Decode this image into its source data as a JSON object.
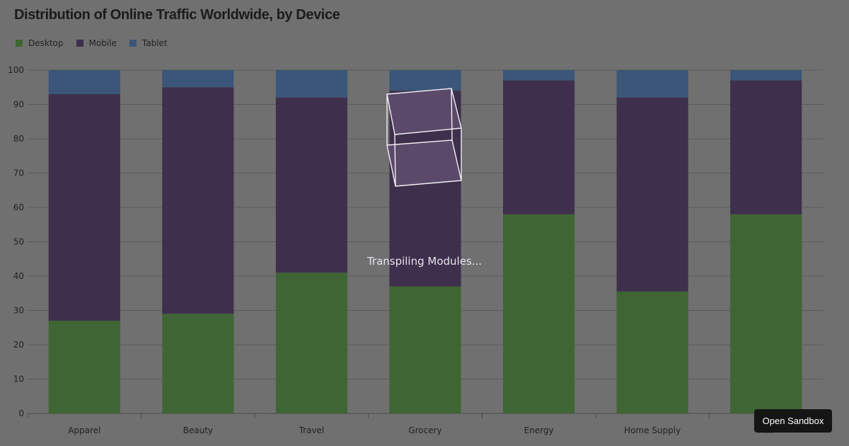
{
  "chart_data": {
    "type": "bar",
    "stacked": true,
    "title": "Distribution of Online Traffic Worldwide, by Device",
    "categories": [
      "Apparel",
      "Beauty",
      "Travel",
      "Grocery",
      "Energy",
      "Home Supply",
      "Fi..."
    ],
    "series": [
      {
        "name": "Desktop",
        "color": "#3f6534",
        "values": [
          27,
          29,
          41,
          37,
          58,
          35.5,
          58
        ]
      },
      {
        "name": "Mobile",
        "color": "#3e304c",
        "values": [
          66,
          66,
          51,
          57,
          39,
          56.5,
          39
        ]
      },
      {
        "name": "Tablet",
        "color": "#3a5679",
        "values": [
          7,
          5,
          8,
          6,
          3,
          8,
          3
        ]
      }
    ],
    "ylim": [
      0,
      100
    ],
    "yticks": [
      0,
      10,
      20,
      30,
      40,
      50,
      60,
      70,
      80,
      90,
      100
    ],
    "grid": true,
    "legend_position": "top-left"
  },
  "overlay": {
    "loading_text": "Transpiling Modules...",
    "open_sandbox_label": "Open Sandbox"
  }
}
